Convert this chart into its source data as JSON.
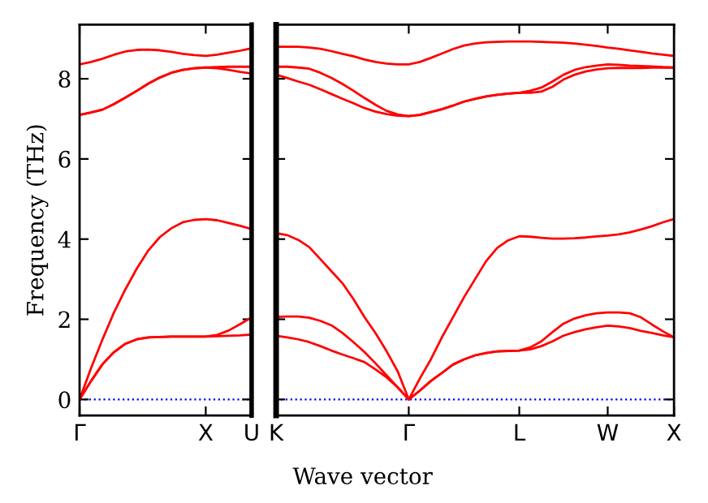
{
  "chart_data": [
    {
      "type": "line",
      "ylabel": "Frequency (THz)",
      "ylim": [
        -0.4,
        9.35
      ],
      "yticks": [
        0,
        2,
        4,
        6,
        8
      ],
      "grid": false,
      "legend": false,
      "marker": "none",
      "line_style": "solid",
      "categories": [
        "Γ",
        null,
        null,
        null,
        null,
        null,
        null,
        null,
        null,
        null,
        null,
        "X",
        null,
        null,
        null,
        "U"
      ],
      "ref_lines": [
        {
          "axis": "y",
          "value": 0,
          "color": "#0000ff",
          "line_style": "dotted"
        }
      ],
      "series": [
        {
          "color": "#ff0000",
          "values": [
            0,
            0.46,
            0.88,
            1.18,
            1.39,
            1.5,
            1.55,
            1.56,
            1.57,
            1.57,
            1.57,
            1.57,
            1.58,
            1.59,
            1.6,
            1.62
          ]
        },
        {
          "color": "#ff0000",
          "values": [
            0,
            0.46,
            0.88,
            1.18,
            1.39,
            1.5,
            1.55,
            1.56,
            1.57,
            1.57,
            1.57,
            1.57,
            1.61,
            1.72,
            1.88,
            2.05
          ]
        },
        {
          "color": "#ff0000",
          "values": [
            0,
            0.78,
            1.5,
            2.17,
            2.75,
            3.27,
            3.72,
            4.05,
            4.27,
            4.42,
            4.48,
            4.5,
            4.47,
            4.4,
            4.33,
            4.25
          ]
        },
        {
          "color": "#ff0000",
          "values": [
            7.1,
            7.16,
            7.23,
            7.37,
            7.53,
            7.7,
            7.88,
            8.03,
            8.15,
            8.22,
            8.26,
            8.28,
            8.26,
            8.22,
            8.17,
            8.13
          ]
        },
        {
          "color": "#ff0000",
          "values": [
            7.1,
            7.16,
            7.23,
            7.37,
            7.53,
            7.7,
            7.88,
            8.03,
            8.15,
            8.22,
            8.26,
            8.28,
            8.29,
            8.3,
            8.3,
            8.3
          ]
        },
        {
          "color": "#ff0000",
          "values": [
            8.36,
            8.42,
            8.5,
            8.6,
            8.68,
            8.72,
            8.73,
            8.71,
            8.67,
            8.62,
            8.59,
            8.57,
            8.6,
            8.65,
            8.7,
            8.76
          ]
        }
      ]
    },
    {
      "type": "line",
      "xlabel": "Wave vector",
      "ylim": [
        -0.4,
        9.35
      ],
      "yticks": [
        0,
        2,
        4,
        6,
        8
      ],
      "grid": false,
      "legend": false,
      "marker": "none",
      "line_style": "solid",
      "tick_labels": "x",
      "categories": [
        "K",
        null,
        null,
        null,
        null,
        null,
        null,
        null,
        null,
        null,
        null,
        null,
        "Γ",
        null,
        null,
        null,
        null,
        null,
        null,
        null,
        null,
        null,
        "L",
        null,
        null,
        null,
        null,
        null,
        null,
        null,
        "W",
        null,
        null,
        null,
        null,
        null,
        "X"
      ],
      "ref_lines": [
        {
          "axis": "y",
          "value": 0,
          "color": "#0000ff",
          "line_style": "dotted"
        }
      ],
      "series": [
        {
          "color": "#ff0000",
          "values": [
            1.59,
            1.55,
            1.5,
            1.43,
            1.33,
            1.22,
            1.12,
            1.03,
            0.93,
            0.75,
            0.55,
            0.3,
            0,
            0.22,
            0.46,
            0.66,
            0.87,
            1.0,
            1.1,
            1.16,
            1.2,
            1.21,
            1.22,
            1.25,
            1.33,
            1.45,
            1.59,
            1.68,
            1.75,
            1.8,
            1.84,
            1.82,
            1.78,
            1.71,
            1.66,
            1.6,
            1.55
          ]
        },
        {
          "color": "#ff0000",
          "values": [
            2.06,
            2.07,
            2.07,
            2.04,
            1.96,
            1.85,
            1.66,
            1.43,
            1.18,
            0.9,
            0.6,
            0.3,
            0,
            0.22,
            0.46,
            0.66,
            0.87,
            1.0,
            1.1,
            1.16,
            1.2,
            1.21,
            1.22,
            1.3,
            1.45,
            1.68,
            1.89,
            2.02,
            2.1,
            2.15,
            2.17,
            2.17,
            2.15,
            2.05,
            1.87,
            1.7,
            1.55
          ]
        },
        {
          "color": "#ff0000",
          "values": [
            4.15,
            4.1,
            3.98,
            3.8,
            3.5,
            3.2,
            2.9,
            2.5,
            2.05,
            1.65,
            1.2,
            0.7,
            0,
            0.52,
            1.0,
            1.55,
            2.05,
            2.55,
            3.0,
            3.45,
            3.78,
            3.97,
            4.07,
            4.06,
            4.03,
            4.01,
            4.01,
            4.02,
            4.04,
            4.07,
            4.09,
            4.12,
            4.17,
            4.24,
            4.32,
            4.42,
            4.5
          ]
        },
        {
          "color": "#ff0000",
          "values": [
            8.1,
            8.02,
            7.93,
            7.85,
            7.74,
            7.62,
            7.5,
            7.39,
            7.27,
            7.18,
            7.12,
            7.08,
            7.07,
            7.1,
            7.17,
            7.24,
            7.33,
            7.43,
            7.5,
            7.56,
            7.6,
            7.63,
            7.65,
            7.65,
            7.68,
            7.8,
            7.98,
            8.1,
            8.18,
            8.23,
            8.26,
            8.27,
            8.27,
            8.27,
            8.28,
            8.28,
            8.28
          ]
        },
        {
          "color": "#ff0000",
          "values": [
            8.3,
            8.3,
            8.28,
            8.25,
            8.15,
            8.02,
            7.87,
            7.7,
            7.52,
            7.35,
            7.2,
            7.11,
            7.07,
            7.1,
            7.17,
            7.24,
            7.33,
            7.43,
            7.5,
            7.56,
            7.6,
            7.63,
            7.65,
            7.7,
            7.78,
            7.93,
            8.1,
            8.22,
            8.29,
            8.33,
            8.36,
            8.35,
            8.33,
            8.32,
            8.31,
            8.29,
            8.28
          ]
        },
        {
          "color": "#ff0000",
          "values": [
            8.8,
            8.8,
            8.8,
            8.78,
            8.75,
            8.69,
            8.62,
            8.56,
            8.48,
            8.42,
            8.38,
            8.36,
            8.36,
            8.42,
            8.52,
            8.63,
            8.74,
            8.83,
            8.88,
            8.91,
            8.92,
            8.93,
            8.93,
            8.93,
            8.92,
            8.91,
            8.9,
            8.88,
            8.85,
            8.82,
            8.78,
            8.75,
            8.71,
            8.67,
            8.63,
            8.6,
            8.57
          ]
        }
      ]
    }
  ]
}
